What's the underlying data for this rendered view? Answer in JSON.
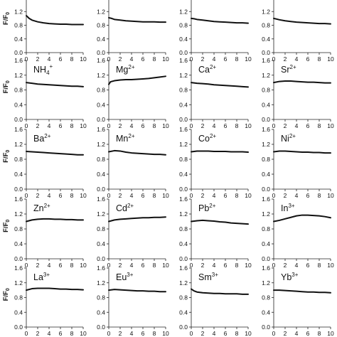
{
  "figure": {
    "ylabel_parts": [
      "F/F",
      "0"
    ]
  },
  "chart_data": {
    "type": "line",
    "grid": false,
    "xlim": [
      0,
      10
    ],
    "ylim": [
      0.0,
      1.6
    ],
    "xticks": [
      0,
      2,
      4,
      6,
      8,
      10
    ],
    "yticks": [
      0.0,
      0.4,
      0.8,
      1.2,
      1.6
    ],
    "panels": [
      {
        "ion": "",
        "charge": "",
        "yticks_shown": [
          0.0,
          0.4,
          0.8,
          1.2
        ],
        "x": [
          0,
          0.5,
          1,
          2,
          3,
          4,
          5,
          6,
          7,
          8,
          9,
          10
        ],
        "y": [
          1.08,
          1.0,
          0.95,
          0.9,
          0.87,
          0.85,
          0.84,
          0.83,
          0.83,
          0.82,
          0.82,
          0.82
        ]
      },
      {
        "ion": "",
        "charge": "",
        "yticks_shown": [
          0.0,
          0.4,
          0.8,
          1.2
        ],
        "x": [
          0,
          0.5,
          1,
          2,
          3,
          4,
          5,
          6,
          7,
          8,
          9,
          10
        ],
        "y": [
          1.02,
          1.0,
          0.97,
          0.95,
          0.93,
          0.92,
          0.91,
          0.9,
          0.9,
          0.9,
          0.89,
          0.89
        ]
      },
      {
        "ion": "",
        "charge": "",
        "yticks_shown": [
          0.0,
          0.4,
          0.8,
          1.2
        ],
        "x": [
          0,
          0.5,
          1,
          2,
          3,
          4,
          5,
          6,
          7,
          8,
          9,
          10
        ],
        "y": [
          1.0,
          0.99,
          0.97,
          0.95,
          0.93,
          0.91,
          0.9,
          0.89,
          0.88,
          0.87,
          0.87,
          0.86
        ]
      },
      {
        "ion": "",
        "charge": "",
        "yticks_shown": [
          0.0,
          0.4,
          0.8,
          1.2
        ],
        "x": [
          0,
          0.5,
          1,
          2,
          3,
          4,
          5,
          6,
          7,
          8,
          9,
          10
        ],
        "y": [
          1.0,
          0.98,
          0.96,
          0.93,
          0.91,
          0.89,
          0.88,
          0.87,
          0.86,
          0.85,
          0.85,
          0.84
        ]
      },
      {
        "ion": "NH",
        "sub": "4",
        "charge": "+",
        "x": [
          0,
          1,
          2,
          3,
          4,
          5,
          6,
          7,
          8,
          9,
          10
        ],
        "y": [
          1.0,
          0.98,
          0.96,
          0.95,
          0.94,
          0.93,
          0.92,
          0.91,
          0.9,
          0.9,
          0.89
        ]
      },
      {
        "ion": "Mg",
        "charge": "2+",
        "x": [
          0,
          0.3,
          1,
          2,
          3,
          4,
          5,
          6,
          7,
          8,
          9,
          10
        ],
        "y": [
          0.95,
          1.02,
          1.05,
          1.07,
          1.08,
          1.08,
          1.09,
          1.1,
          1.11,
          1.13,
          1.15,
          1.17
        ]
      },
      {
        "ion": "Ca",
        "charge": "2+",
        "x": [
          0,
          1,
          2,
          3,
          4,
          5,
          6,
          7,
          8,
          9,
          10
        ],
        "y": [
          1.0,
          0.98,
          0.97,
          0.96,
          0.94,
          0.93,
          0.92,
          0.91,
          0.9,
          0.89,
          0.88
        ]
      },
      {
        "ion": "Sr",
        "charge": "2+",
        "x": [
          0,
          1,
          2,
          3,
          4,
          5,
          6,
          7,
          8,
          9,
          10
        ],
        "y": [
          1.0,
          1.03,
          1.04,
          1.04,
          1.03,
          1.02,
          1.01,
          1.01,
          1.0,
          0.99,
          0.99
        ]
      },
      {
        "ion": "Ba",
        "charge": "2+",
        "x": [
          0,
          1,
          2,
          3,
          4,
          5,
          6,
          7,
          8,
          9,
          10
        ],
        "y": [
          1.01,
          1.0,
          0.99,
          0.98,
          0.97,
          0.96,
          0.95,
          0.94,
          0.93,
          0.92,
          0.92
        ]
      },
      {
        "ion": "Mn",
        "charge": "2+",
        "x": [
          0,
          1,
          2,
          3,
          4,
          5,
          6,
          7,
          8,
          9,
          10
        ],
        "y": [
          1.0,
          1.03,
          1.02,
          0.99,
          0.97,
          0.96,
          0.95,
          0.94,
          0.93,
          0.93,
          0.92
        ]
      },
      {
        "ion": "Co",
        "charge": "2+",
        "x": [
          0,
          1,
          2,
          3,
          4,
          5,
          6,
          7,
          8,
          9,
          10
        ],
        "y": [
          1.0,
          1.02,
          1.02,
          1.02,
          1.01,
          1.01,
          1.01,
          1.0,
          1.0,
          1.0,
          0.99
        ]
      },
      {
        "ion": "Ni",
        "charge": "2+",
        "x": [
          0,
          1,
          2,
          3,
          4,
          5,
          6,
          7,
          8,
          9,
          10
        ],
        "y": [
          1.0,
          1.02,
          1.02,
          1.01,
          1.0,
          0.99,
          0.99,
          0.98,
          0.98,
          0.97,
          0.97
        ]
      },
      {
        "ion": "Zn",
        "charge": "2+",
        "x": [
          0,
          1,
          2,
          3,
          4,
          5,
          6,
          7,
          8,
          9,
          10
        ],
        "y": [
          1.0,
          1.04,
          1.06,
          1.07,
          1.07,
          1.06,
          1.06,
          1.05,
          1.05,
          1.04,
          1.04
        ]
      },
      {
        "ion": "Cd",
        "charge": "2+",
        "x": [
          0,
          1,
          2,
          3,
          4,
          5,
          6,
          7,
          8,
          9,
          10
        ],
        "y": [
          1.0,
          1.04,
          1.06,
          1.07,
          1.08,
          1.09,
          1.1,
          1.1,
          1.11,
          1.11,
          1.12
        ]
      },
      {
        "ion": "Pb",
        "charge": "2+",
        "x": [
          0,
          1,
          2,
          3,
          4,
          5,
          6,
          7,
          8,
          9,
          10
        ],
        "y": [
          1.0,
          1.02,
          1.03,
          1.02,
          1.01,
          0.99,
          0.98,
          0.96,
          0.95,
          0.94,
          0.93
        ]
      },
      {
        "ion": "In",
        "charge": "3+",
        "x": [
          0,
          1,
          2,
          3,
          4,
          5,
          6,
          7,
          8,
          9,
          10
        ],
        "y": [
          1.0,
          1.03,
          1.07,
          1.11,
          1.15,
          1.17,
          1.17,
          1.16,
          1.15,
          1.13,
          1.1
        ]
      },
      {
        "ion": "La",
        "charge": "3+",
        "x": [
          0,
          1,
          2,
          3,
          4,
          5,
          6,
          7,
          8,
          9,
          10
        ],
        "y": [
          1.0,
          1.04,
          1.05,
          1.05,
          1.05,
          1.04,
          1.03,
          1.03,
          1.02,
          1.02,
          1.01
        ]
      },
      {
        "ion": "Eu",
        "charge": "3+",
        "x": [
          0,
          1,
          2,
          3,
          4,
          5,
          6,
          7,
          8,
          9,
          10
        ],
        "y": [
          1.0,
          1.02,
          1.01,
          1.0,
          0.99,
          0.98,
          0.98,
          0.97,
          0.97,
          0.96,
          0.96
        ]
      },
      {
        "ion": "Sm",
        "charge": "3+",
        "x": [
          0,
          0.5,
          1,
          2,
          3,
          4,
          5,
          6,
          7,
          8,
          9,
          10
        ],
        "y": [
          1.03,
          0.98,
          0.95,
          0.93,
          0.92,
          0.91,
          0.91,
          0.9,
          0.9,
          0.9,
          0.89,
          0.89
        ]
      },
      {
        "ion": "Yb",
        "charge": "3+",
        "x": [
          0,
          1,
          2,
          3,
          4,
          5,
          6,
          7,
          8,
          9,
          10
        ],
        "y": [
          1.0,
          1.0,
          0.99,
          0.98,
          0.97,
          0.96,
          0.95,
          0.95,
          0.94,
          0.94,
          0.93
        ]
      }
    ]
  }
}
